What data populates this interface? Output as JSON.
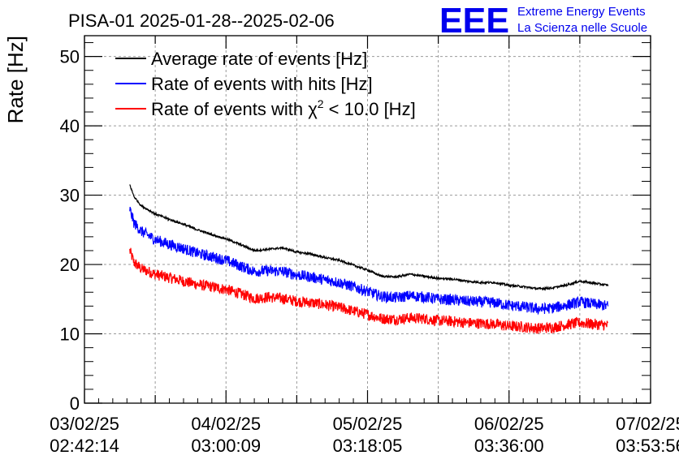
{
  "chart_data": {
    "type": "line",
    "title": "PISA-01 2025-01-28--2025-02-06",
    "ylabel": "Rate [Hz]",
    "xlabel": "",
    "ylim": [
      0,
      53
    ],
    "yticks": [
      "0",
      "10",
      "20",
      "30",
      "40",
      "50"
    ],
    "grid": true,
    "legend_position": "top-left",
    "xlim_days": [
      0,
      4.0
    ],
    "x_ticks": [
      {
        "date": "03/02/25",
        "time": "02:42:14"
      },
      {
        "date": "04/02/25",
        "time": "03:00:09"
      },
      {
        "date": "05/02/25",
        "time": "03:18:05"
      },
      {
        "date": "06/02/25",
        "time": "03:36:00"
      },
      {
        "date": "07/02/25",
        "time": "03:53:56"
      }
    ],
    "x_unit": "days since 03/02/25 02:42:14",
    "series": [
      {
        "name": "Average rate of events [Hz]",
        "color": "#000000",
        "noise": 0.15,
        "x": [
          0.32,
          0.35,
          0.4,
          0.5,
          0.6,
          0.7,
          0.8,
          0.9,
          1.0,
          1.1,
          1.2,
          1.3,
          1.4,
          1.5,
          1.6,
          1.7,
          1.8,
          1.9,
          2.0,
          2.1,
          2.2,
          2.3,
          2.4,
          2.5,
          2.6,
          2.7,
          2.8,
          2.9,
          3.0,
          3.1,
          3.2,
          3.3,
          3.4,
          3.5,
          3.6,
          3.7
        ],
        "y": [
          31.5,
          29.8,
          28.5,
          27.3,
          26.5,
          25.8,
          25.0,
          24.3,
          23.7,
          22.9,
          22.0,
          22.2,
          22.4,
          21.8,
          21.5,
          21.0,
          20.6,
          19.9,
          19.2,
          18.3,
          18.2,
          18.6,
          18.3,
          18.0,
          17.9,
          17.6,
          17.4,
          17.4,
          17.0,
          16.8,
          16.5,
          16.6,
          17.0,
          17.6,
          17.3,
          17.0
        ]
      },
      {
        "name": "Rate of events with hits [Hz]",
        "color": "#0000ff",
        "noise": 0.8,
        "x": [
          0.32,
          0.35,
          0.4,
          0.5,
          0.6,
          0.7,
          0.8,
          0.9,
          1.0,
          1.1,
          1.2,
          1.3,
          1.4,
          1.5,
          1.6,
          1.7,
          1.8,
          1.9,
          2.0,
          2.1,
          2.2,
          2.3,
          2.4,
          2.5,
          2.6,
          2.7,
          2.8,
          2.9,
          3.0,
          3.1,
          3.2,
          3.3,
          3.4,
          3.5,
          3.6,
          3.7
        ],
        "y": [
          28.0,
          26.0,
          24.8,
          23.6,
          22.9,
          22.3,
          21.6,
          21.1,
          20.6,
          19.8,
          19.0,
          19.1,
          19.0,
          18.5,
          18.2,
          17.8,
          17.4,
          16.8,
          16.1,
          15.4,
          15.2,
          15.5,
          15.3,
          15.0,
          14.9,
          14.7,
          14.6,
          14.5,
          14.1,
          13.9,
          13.6,
          13.7,
          14.1,
          14.6,
          14.3,
          14.0
        ]
      },
      {
        "name": "Rate of events with χ² < 10.0 [Hz]",
        "color": "#ff0000",
        "noise": 0.8,
        "x": [
          0.32,
          0.35,
          0.4,
          0.5,
          0.6,
          0.7,
          0.8,
          0.9,
          1.0,
          1.1,
          1.2,
          1.3,
          1.4,
          1.5,
          1.6,
          1.7,
          1.8,
          1.9,
          2.0,
          2.1,
          2.2,
          2.3,
          2.4,
          2.5,
          2.6,
          2.7,
          2.8,
          2.9,
          3.0,
          3.1,
          3.2,
          3.3,
          3.4,
          3.5,
          3.6,
          3.7
        ],
        "y": [
          22.0,
          20.3,
          19.4,
          18.6,
          18.1,
          17.6,
          17.1,
          16.8,
          16.4,
          15.8,
          15.1,
          15.3,
          15.1,
          14.7,
          14.5,
          14.2,
          13.8,
          13.3,
          12.8,
          12.2,
          12.1,
          12.3,
          12.2,
          11.9,
          11.8,
          11.6,
          11.5,
          11.4,
          11.1,
          11.0,
          10.8,
          10.9,
          11.3,
          11.6,
          11.4,
          11.2
        ]
      }
    ]
  },
  "logo": {
    "mark": "EEE",
    "line1": "Extreme Energy Events",
    "line2": "La Scienza nelle Scuole"
  },
  "legend": {
    "avg_label": "Average rate of events [Hz]",
    "hits_label": "Rate of events with hits [Hz]",
    "chi_prefix": "Rate of events with χ",
    "chi_sup": "2",
    "chi_suffix": " < 10.0 [Hz]"
  }
}
